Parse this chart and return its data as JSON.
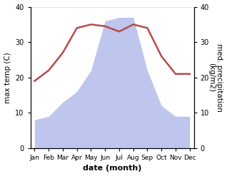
{
  "months": [
    "Jan",
    "Feb",
    "Mar",
    "Apr",
    "May",
    "Jun",
    "Jul",
    "Aug",
    "Sep",
    "Oct",
    "Nov",
    "Dec"
  ],
  "x": [
    0,
    1,
    2,
    3,
    4,
    5,
    6,
    7,
    8,
    9,
    10,
    11
  ],
  "temperature": [
    19,
    22,
    27,
    34,
    35,
    34.5,
    33,
    35,
    34,
    26,
    21,
    21
  ],
  "precipitation": [
    8,
    9,
    13,
    16,
    22,
    36,
    37,
    37,
    22,
    12,
    9,
    9
  ],
  "temp_color": "#b94a4a",
  "precip_color": "#aab4e8",
  "title": "",
  "xlabel": "date (month)",
  "ylabel_left": "max temp (C)",
  "ylabel_right": "med. precipitation\n(kg/m2)",
  "ylim": [
    0,
    40
  ],
  "yticks": [
    0,
    10,
    20,
    30,
    40
  ],
  "ytick_labels_right": [
    "0",
    "10",
    "20",
    "30",
    "40"
  ],
  "bg_color": "#ffffff",
  "line_width": 1.8,
  "figsize": [
    3.18,
    2.47
  ],
  "dpi": 100
}
